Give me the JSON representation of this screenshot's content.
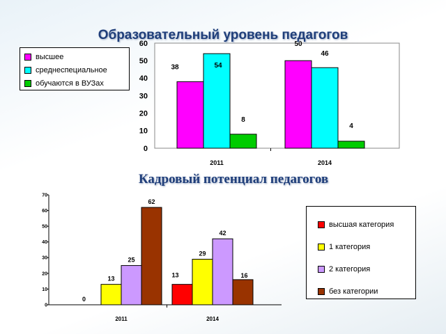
{
  "chart_data": [
    {
      "type": "bar",
      "title": "Образовательный уровень педагогов",
      "categories": [
        "2011",
        "2014"
      ],
      "series": [
        {
          "name": "высшее",
          "values": [
            38,
            50
          ],
          "color": "#ff00ff"
        },
        {
          "name": "среднеспециальное",
          "values": [
            54,
            46
          ],
          "color": "#00ffff"
        },
        {
          "name": "обучаются в ВУЗах",
          "values": [
            8,
            4
          ],
          "color": "#00cc00"
        }
      ],
      "ylim": [
        0,
        60
      ],
      "yticks": [
        "0",
        "10",
        "20",
        "30",
        "40",
        "50",
        "60"
      ],
      "legend": "top-left",
      "grid": false
    },
    {
      "type": "bar",
      "title": "Кадровый потенциал педагогов",
      "categories": [
        "2011",
        "2014"
      ],
      "series": [
        {
          "name": "высшая категория",
          "values": [
            0,
            13
          ],
          "color": "#ff0000"
        },
        {
          "name": "1 категория",
          "values": [
            13,
            29
          ],
          "color": "#ffff00"
        },
        {
          "name": "2 категория",
          "values": [
            25,
            42
          ],
          "color": "#cc99ff"
        },
        {
          "name": "без категории",
          "values": [
            62,
            16
          ],
          "color": "#993300"
        }
      ],
      "ylim": [
        0,
        70
      ],
      "yticks": [
        "0",
        "10",
        "20",
        "30",
        "40",
        "50",
        "60",
        "70"
      ],
      "legend": "right",
      "grid": false
    }
  ]
}
